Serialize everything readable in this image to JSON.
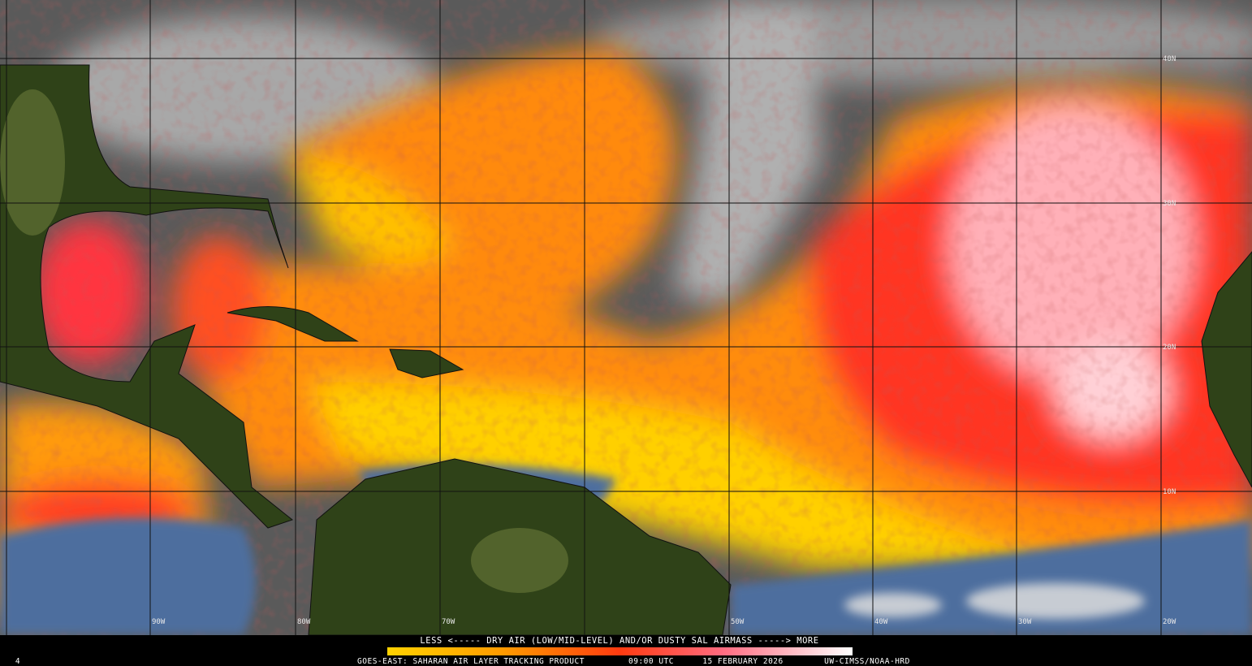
{
  "map": {
    "grid_labels": {
      "latitudes": [
        "40N",
        "30N",
        "20N",
        "10N"
      ],
      "longitudes": [
        "90W",
        "80W",
        "70W",
        "50W",
        "40W",
        "30W",
        "20W"
      ]
    },
    "legend": {
      "caption": "LESS <----- DRY AIR (LOW/MID-LEVEL) AND/OR DUSTY SAL AIRMASS -----> MORE"
    },
    "footer": {
      "frame": "4",
      "product": "GOES-EAST: SAHARAN AIR LAYER TRACKING PRODUCT",
      "time": "09:00 UTC",
      "date": "15 FEBRUARY 2026",
      "credit": "UW-CIMSS/NOAA-HRD"
    }
  }
}
